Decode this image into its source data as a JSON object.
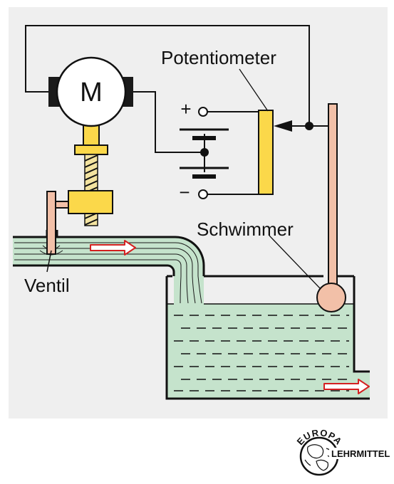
{
  "labels": {
    "motor": "M",
    "potentiometer": "Potentiometer",
    "float": "Schwimmer",
    "valve": "Ventil",
    "plus": "+",
    "minus": "−"
  },
  "logo": {
    "top_text": "EUROPA",
    "side_text": "LEHRMITTEL"
  },
  "colors": {
    "panel": "#efefef",
    "line": "#111111",
    "water": "#c5e3cc",
    "yellow": "#fbd84a",
    "skin": "#f2c0a8",
    "arrow": "#d42020",
    "dark_block": "#1a1a1a"
  }
}
